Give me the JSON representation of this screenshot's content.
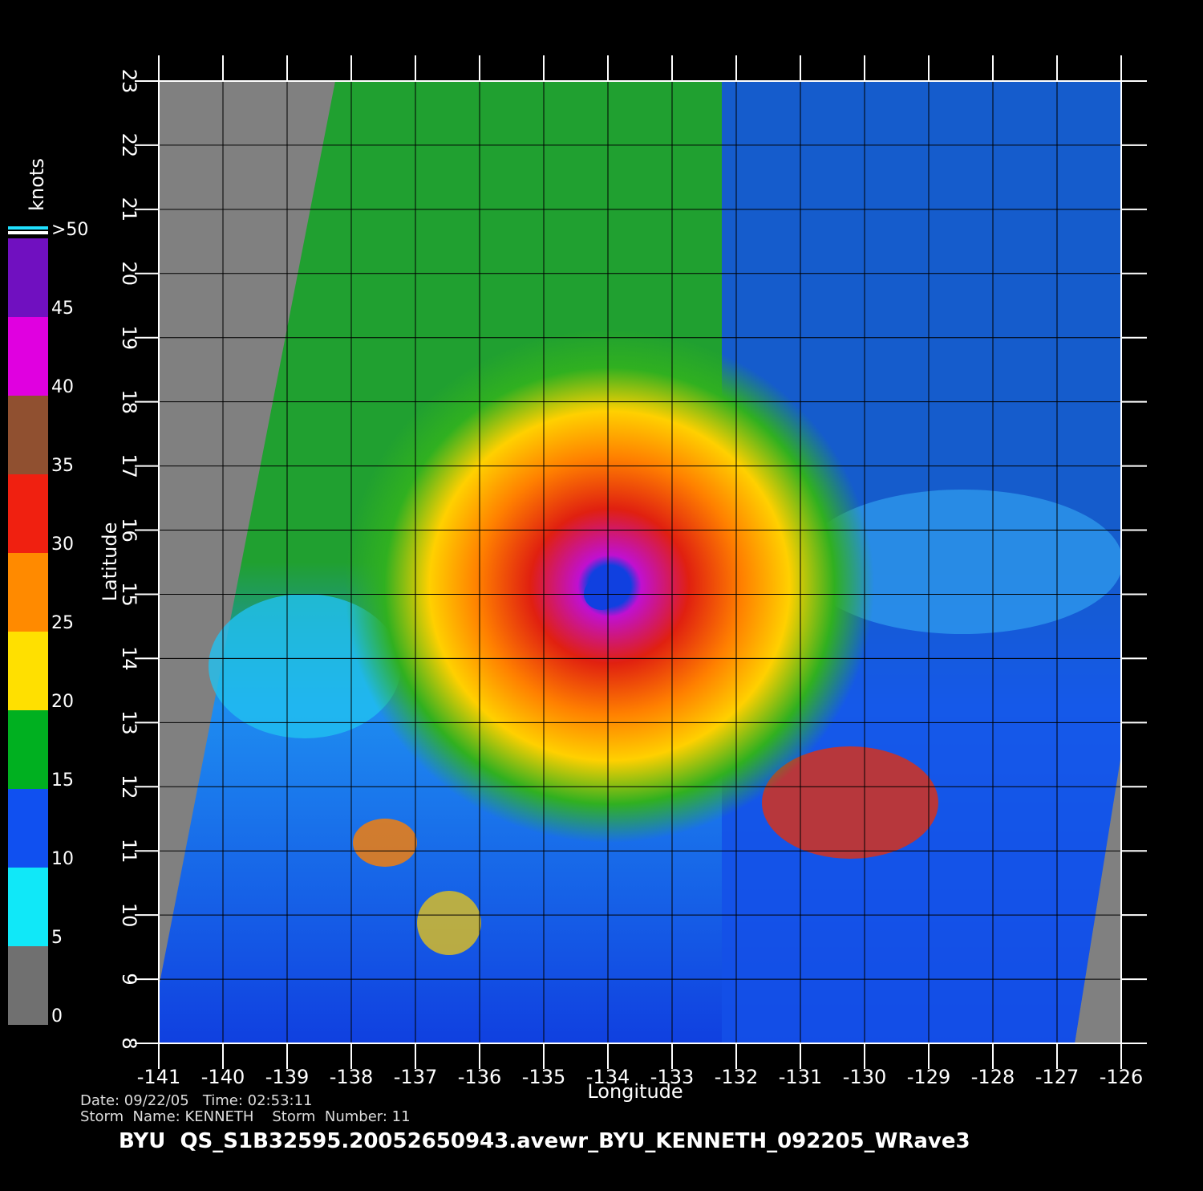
{
  "chart_data": {
    "type": "map",
    "xlabel": "Longitude",
    "ylabel": "Latitude",
    "xlim": [
      -141,
      -126
    ],
    "ylim": [
      8,
      23
    ],
    "xticks": [
      -141,
      -140,
      -139,
      -138,
      -137,
      -136,
      -135,
      -134,
      -133,
      -132,
      -131,
      -130,
      -129,
      -128,
      -127,
      -126
    ],
    "yticks": [
      8,
      9,
      10,
      11,
      12,
      13,
      14,
      15,
      16,
      17,
      18,
      19,
      20,
      21,
      22,
      23
    ],
    "grid": true,
    "colorbar": {
      "label": "knots",
      "ticks": [
        0,
        5,
        10,
        15,
        20,
        25,
        30,
        35,
        40,
        45,
        {
          "value": 50,
          "label": ">50"
        }
      ],
      "colors": [
        "#707070",
        "#10e8f8",
        "#1050f0",
        "#00b020",
        "#ffe000",
        "#ff8a00",
        "#f02010",
        "#905030",
        "#e000e0",
        "#7010c0"
      ]
    },
    "footer": {
      "line1": "Date: 09/22/05   Time: 02:53:11",
      "line2": "Storm  Name: KENNETH    Storm  Number: 11",
      "title": "BYU  QS_S1B32595.20052650943.avewr_BYU_KENNETH_092205_WRave3"
    }
  }
}
